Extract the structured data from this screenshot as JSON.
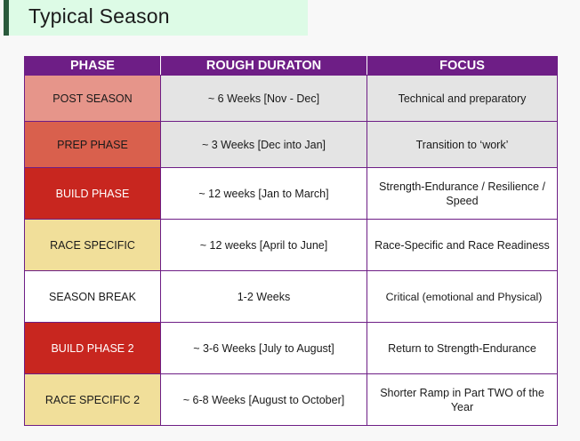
{
  "title": "Typical Season",
  "table": {
    "headers": {
      "phase": "PHASE",
      "duration": "ROUGH DURATON",
      "focus": "FOCUS"
    },
    "rows": [
      {
        "phase": "POST SEASON",
        "duration": "~ 6 Weeks [Nov - Dec]",
        "focus": "Technical and preparatory",
        "phase_color": "#e6958a"
      },
      {
        "phase": "PREP PHASE",
        "duration": "~ 3 Weeks [Dec into Jan]",
        "focus": "Transition to ‘work’",
        "phase_color": "#d9604d"
      },
      {
        "phase": "BUILD PHASE",
        "duration": "~ 12 weeks [Jan to March]",
        "focus": "Strength-Endurance / Resilience / Speed",
        "phase_color": "#c8261f"
      },
      {
        "phase": "RACE SPECIFIC",
        "duration": "~ 12 weeks [April to June]",
        "focus": "Race-Specific and Race Readiness",
        "phase_color": "#f1df9a"
      },
      {
        "phase": "SEASON BREAK",
        "duration": "1-2 Weeks",
        "focus": "Critical (emotional and Physical)",
        "phase_color": "#ffffff"
      },
      {
        "phase": "BUILD PHASE 2",
        "duration": "~ 3-6 Weeks [July to August]",
        "focus": "Return to Strength-Endurance",
        "phase_color": "#c8261f"
      },
      {
        "phase": "RACE SPECIFIC 2",
        "duration": "~ 6-8 Weeks [August to October]",
        "focus": "Shorter Ramp in Part TWO of the Year",
        "phase_color": "#f1df9a"
      }
    ]
  },
  "colors": {
    "header_bg": "#6e1e86",
    "title_bg": "#ddfbe6",
    "title_accent": "#2a5a3c",
    "shaded_cell": "#e4e4e4"
  }
}
